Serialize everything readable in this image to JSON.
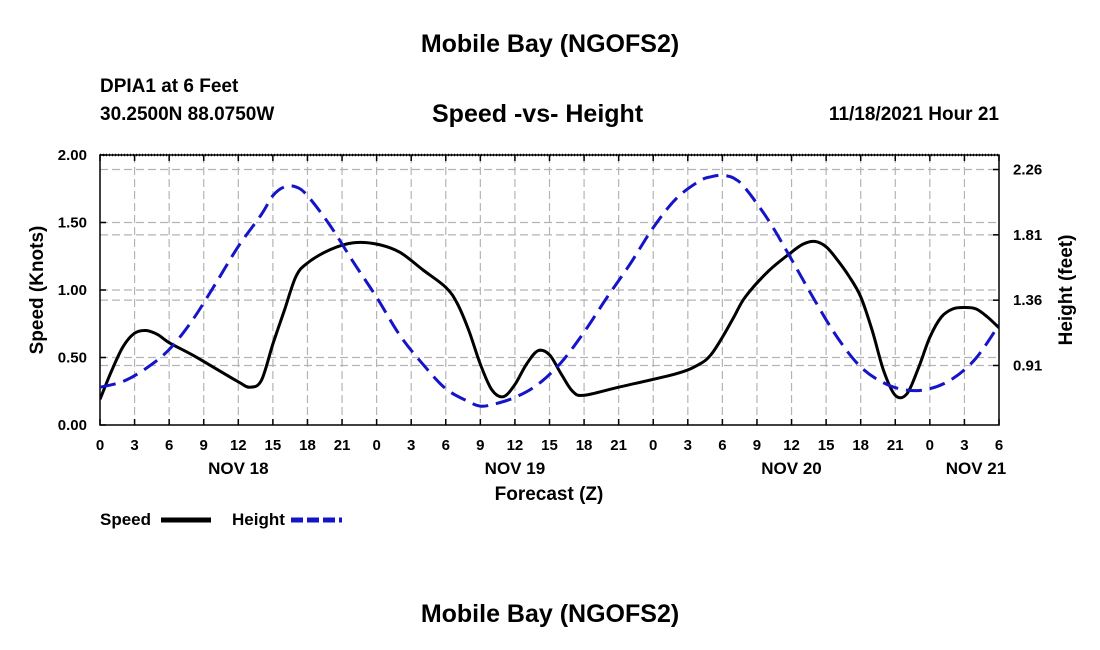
{
  "header": {
    "title": "Mobile Bay (NGOFS2)",
    "station": "DPIA1 at 6 Feet",
    "coordinates": "30.2500N  88.0750W",
    "subtitle": "Speed -vs- Height",
    "timestamp": "11/18/2021 Hour 21"
  },
  "footer": {
    "title": "Mobile Bay (NGOFS2)"
  },
  "chart_data": {
    "type": "line",
    "title": "Speed -vs- Height",
    "xlabel": "Forecast (Z)",
    "ylabel": "Speed (Knots)",
    "y2label": "Height (feet)",
    "x_unit": "hours since NOV 18 00Z",
    "xlim": [
      0,
      78
    ],
    "ylim": [
      0,
      2.0
    ],
    "y2lim": [
      0.5,
      2.36
    ],
    "grid": true,
    "x_ticks": [
      {
        "x": 0,
        "label": "0"
      },
      {
        "x": 3,
        "label": "3"
      },
      {
        "x": 6,
        "label": "6"
      },
      {
        "x": 9,
        "label": "9"
      },
      {
        "x": 12,
        "label": "12"
      },
      {
        "x": 15,
        "label": "15"
      },
      {
        "x": 18,
        "label": "18"
      },
      {
        "x": 21,
        "label": "21"
      },
      {
        "x": 24,
        "label": "0"
      },
      {
        "x": 27,
        "label": "3"
      },
      {
        "x": 30,
        "label": "6"
      },
      {
        "x": 33,
        "label": "9"
      },
      {
        "x": 36,
        "label": "12"
      },
      {
        "x": 39,
        "label": "15"
      },
      {
        "x": 42,
        "label": "18"
      },
      {
        "x": 45,
        "label": "21"
      },
      {
        "x": 48,
        "label": "0"
      },
      {
        "x": 51,
        "label": "3"
      },
      {
        "x": 54,
        "label": "6"
      },
      {
        "x": 57,
        "label": "9"
      },
      {
        "x": 60,
        "label": "12"
      },
      {
        "x": 63,
        "label": "15"
      },
      {
        "x": 66,
        "label": "18"
      },
      {
        "x": 69,
        "label": "21"
      },
      {
        "x": 72,
        "label": "0"
      },
      {
        "x": 75,
        "label": "3"
      },
      {
        "x": 78,
        "label": "6"
      }
    ],
    "date_labels": [
      {
        "x": 12,
        "label": "NOV 18"
      },
      {
        "x": 36,
        "label": "NOV 19"
      },
      {
        "x": 60,
        "label": "NOV 20"
      },
      {
        "x": 76,
        "label": "NOV 21"
      }
    ],
    "y_ticks": [
      {
        "v": 0,
        "label": "0.00"
      },
      {
        "v": 0.5,
        "label": "0.50"
      },
      {
        "v": 1.0,
        "label": "1.00"
      },
      {
        "v": 1.5,
        "label": "1.50"
      },
      {
        "v": 2.0,
        "label": "2.00"
      }
    ],
    "y2_ticks": [
      {
        "v": 0.91,
        "label": "0.91"
      },
      {
        "v": 1.36,
        "label": "1.36"
      },
      {
        "v": 1.81,
        "label": "1.81"
      },
      {
        "v": 2.26,
        "label": "2.26"
      }
    ],
    "series": [
      {
        "name": "Speed",
        "axis": "left",
        "color": "#000000",
        "style": "solid",
        "points": [
          [
            0,
            0.19
          ],
          [
            1,
            0.4
          ],
          [
            2,
            0.58
          ],
          [
            3,
            0.68
          ],
          [
            4,
            0.7
          ],
          [
            5,
            0.67
          ],
          [
            6,
            0.61
          ],
          [
            8,
            0.52
          ],
          [
            10,
            0.42
          ],
          [
            12,
            0.32
          ],
          [
            13,
            0.28
          ],
          [
            14,
            0.33
          ],
          [
            15,
            0.6
          ],
          [
            16,
            0.85
          ],
          [
            17,
            1.1
          ],
          [
            18,
            1.2
          ],
          [
            20,
            1.3
          ],
          [
            22,
            1.35
          ],
          [
            24,
            1.34
          ],
          [
            26,
            1.28
          ],
          [
            28,
            1.15
          ],
          [
            30,
            1.02
          ],
          [
            31,
            0.9
          ],
          [
            32,
            0.7
          ],
          [
            33,
            0.45
          ],
          [
            34,
            0.26
          ],
          [
            35,
            0.21
          ],
          [
            36,
            0.3
          ],
          [
            37,
            0.45
          ],
          [
            38,
            0.55
          ],
          [
            39,
            0.52
          ],
          [
            40,
            0.38
          ],
          [
            41,
            0.25
          ],
          [
            42,
            0.22
          ],
          [
            45,
            0.28
          ],
          [
            50,
            0.38
          ],
          [
            52,
            0.45
          ],
          [
            53,
            0.52
          ],
          [
            54,
            0.65
          ],
          [
            55,
            0.8
          ],
          [
            56,
            0.95
          ],
          [
            58,
            1.14
          ],
          [
            60,
            1.28
          ],
          [
            61,
            1.34
          ],
          [
            62,
            1.36
          ],
          [
            63,
            1.32
          ],
          [
            64,
            1.22
          ],
          [
            65,
            1.1
          ],
          [
            66,
            0.95
          ],
          [
            67,
            0.7
          ],
          [
            68,
            0.4
          ],
          [
            69,
            0.22
          ],
          [
            70,
            0.23
          ],
          [
            71,
            0.42
          ],
          [
            72,
            0.65
          ],
          [
            73,
            0.8
          ],
          [
            74,
            0.86
          ],
          [
            75,
            0.87
          ],
          [
            76,
            0.86
          ],
          [
            77,
            0.8
          ],
          [
            78,
            0.72
          ]
        ]
      },
      {
        "name": "Height",
        "axis": "right",
        "color": "#1414c8",
        "style": "dashed",
        "points": [
          [
            0,
            0.76
          ],
          [
            2,
            0.8
          ],
          [
            4,
            0.89
          ],
          [
            6,
            1.02
          ],
          [
            8,
            1.22
          ],
          [
            10,
            1.47
          ],
          [
            12,
            1.73
          ],
          [
            14,
            1.95
          ],
          [
            15,
            2.08
          ],
          [
            16,
            2.14
          ],
          [
            17,
            2.14
          ],
          [
            18,
            2.08
          ],
          [
            20,
            1.87
          ],
          [
            22,
            1.62
          ],
          [
            24,
            1.38
          ],
          [
            26,
            1.12
          ],
          [
            28,
            0.92
          ],
          [
            30,
            0.75
          ],
          [
            32,
            0.66
          ],
          [
            33,
            0.63
          ],
          [
            34,
            0.64
          ],
          [
            36,
            0.69
          ],
          [
            38,
            0.78
          ],
          [
            40,
            0.93
          ],
          [
            42,
            1.14
          ],
          [
            44,
            1.38
          ],
          [
            46,
            1.61
          ],
          [
            48,
            1.86
          ],
          [
            50,
            2.06
          ],
          [
            52,
            2.18
          ],
          [
            53,
            2.21
          ],
          [
            54,
            2.22
          ],
          [
            55,
            2.2
          ],
          [
            56,
            2.13
          ],
          [
            58,
            1.91
          ],
          [
            60,
            1.64
          ],
          [
            62,
            1.36
          ],
          [
            64,
            1.1
          ],
          [
            66,
            0.9
          ],
          [
            68,
            0.79
          ],
          [
            70,
            0.74
          ],
          [
            72,
            0.75
          ],
          [
            74,
            0.82
          ],
          [
            76,
            0.96
          ],
          [
            78,
            1.19
          ]
        ]
      }
    ],
    "legend": [
      {
        "name": "Speed",
        "color": "#000000",
        "style": "solid"
      },
      {
        "name": "Height",
        "color": "#1414c8",
        "style": "dashed"
      }
    ],
    "legend_position": "bottom-left"
  }
}
